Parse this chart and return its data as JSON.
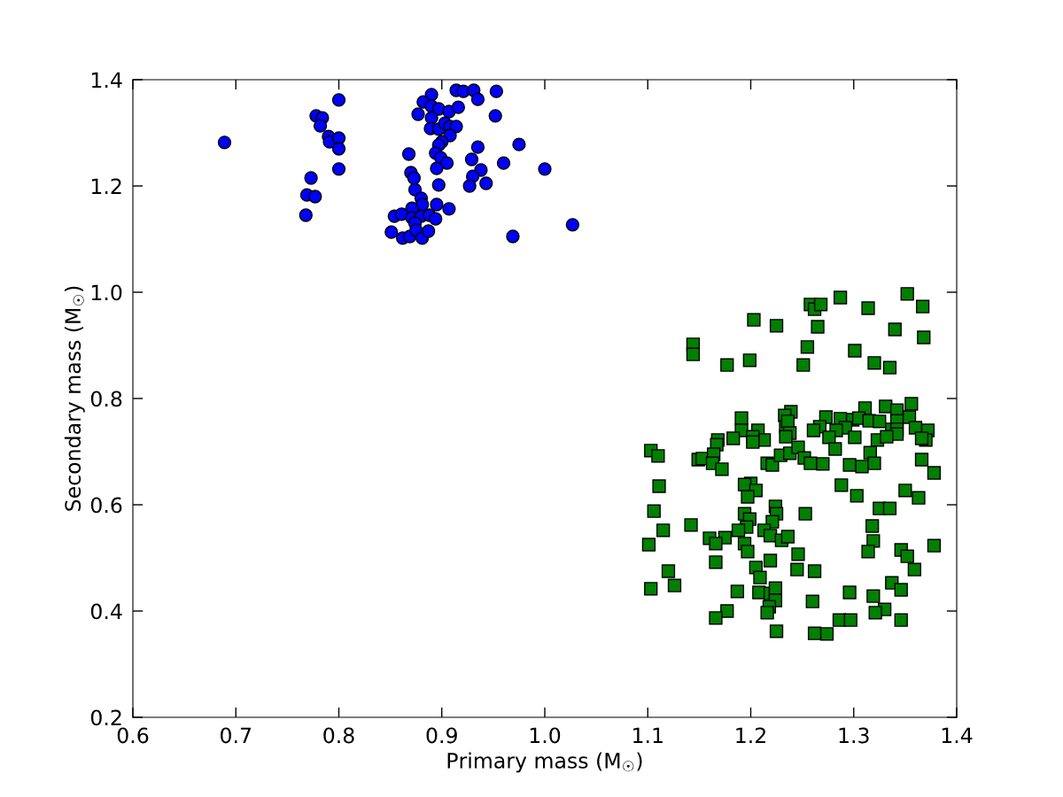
{
  "chart_data": {
    "type": "scatter",
    "xlabel": "Primary mass (M$_{☉}$)",
    "ylabel": "Secondary mass (M$_{☉}$)",
    "xlim": [
      0.6,
      1.4
    ],
    "ylim": [
      0.2,
      1.4
    ],
    "xticks": [
      0.6,
      0.7,
      0.8,
      0.9,
      {
        "value": 1.0,
        "label": "1.0"
      },
      1.1,
      1.2,
      1.3,
      1.4
    ],
    "yticks": [
      0.2,
      0.4,
      0.6,
      0.8,
      {
        "value": 1.0,
        "label": "1.0"
      },
      1.2,
      1.4
    ],
    "grid": false,
    "legend": false,
    "series": [
      {
        "color": "#0000ff",
        "marker": "circle",
        "x": [
          0.689,
          0.8,
          0.778,
          0.784,
          0.782,
          0.79,
          0.791,
          0.8,
          0.8,
          0.8,
          0.773,
          0.769,
          0.777,
          0.768,
          0.868,
          0.87,
          0.873,
          0.874,
          0.88,
          0.881,
          0.871,
          0.895,
          0.907,
          0.854,
          0.861,
          0.871,
          0.88,
          0.888,
          0.894,
          0.874,
          0.851,
          0.862,
          0.869,
          0.875,
          0.881,
          0.887,
          0.89,
          0.882,
          0.89,
          0.897,
          0.907,
          0.916,
          0.877,
          0.89,
          0.889,
          0.897,
          0.903,
          0.908,
          0.914,
          0.908,
          0.9,
          0.897,
          0.894,
          0.899,
          0.905,
          0.895,
          0.897,
          0.914,
          0.921,
          0.931,
          0.935,
          0.953,
          0.952,
          0.935,
          0.929,
          0.938,
          0.93,
          0.927,
          0.943,
          0.96,
          0.975,
          1.0,
          0.969,
          1.027
        ],
        "values": [
          1.282,
          1.362,
          1.332,
          1.328,
          1.313,
          1.293,
          1.283,
          1.29,
          1.27,
          1.232,
          1.215,
          1.183,
          1.18,
          1.145,
          1.26,
          1.225,
          1.215,
          1.193,
          1.177,
          1.165,
          1.158,
          1.165,
          1.157,
          1.143,
          1.147,
          1.14,
          1.143,
          1.145,
          1.138,
          1.13,
          1.113,
          1.102,
          1.105,
          1.117,
          1.102,
          1.115,
          1.372,
          1.358,
          1.35,
          1.345,
          1.34,
          1.348,
          1.335,
          1.328,
          1.308,
          1.307,
          1.318,
          1.312,
          1.312,
          1.295,
          1.283,
          1.277,
          1.262,
          1.253,
          1.243,
          1.233,
          1.202,
          1.38,
          1.378,
          1.38,
          1.363,
          1.378,
          1.332,
          1.273,
          1.25,
          1.23,
          1.218,
          1.2,
          1.205,
          1.243,
          1.278,
          1.232,
          1.105,
          1.127
        ]
      },
      {
        "color": "#008000",
        "marker": "square",
        "x": [
          1.352,
          1.367,
          1.287,
          1.258,
          1.262,
          1.268,
          1.314,
          1.203,
          1.225,
          1.265,
          1.34,
          1.368,
          1.144,
          1.144,
          1.255,
          1.301,
          1.177,
          1.199,
          1.251,
          1.32,
          1.335,
          1.356,
          1.311,
          1.331,
          1.342,
          1.239,
          1.233,
          1.191,
          1.354,
          1.273,
          1.287,
          1.299,
          1.305,
          1.315,
          1.325,
          1.342,
          1.234,
          1.236,
          1.267,
          1.191,
          1.207,
          1.292,
          1.36,
          1.372,
          1.261,
          1.283,
          1.337,
          1.342,
          1.238,
          1.234,
          1.276,
          1.301,
          1.213,
          1.202,
          1.202,
          1.183,
          1.168,
          1.167,
          1.323,
          1.342,
          1.37,
          1.366,
          1.332,
          1.282,
          1.316,
          1.103,
          1.11,
          1.149,
          1.153,
          1.164,
          1.163,
          1.172,
          1.216,
          1.221,
          1.229,
          1.238,
          1.246,
          1.252,
          1.258,
          1.27,
          1.296,
          1.308,
          1.32,
          1.366,
          1.378,
          1.111,
          1.2,
          1.194,
          1.205,
          1.197,
          1.288,
          1.303,
          1.35,
          1.363,
          1.106,
          1.115,
          1.142,
          1.101,
          1.224,
          1.225,
          1.194,
          1.199,
          1.196,
          1.188,
          1.221,
          1.213,
          1.219,
          1.23,
          1.236,
          1.253,
          1.325,
          1.335,
          1.318,
          1.319,
          1.314,
          1.16,
          1.175,
          1.166,
          1.194,
          1.197,
          1.246,
          1.346,
          1.352,
          1.378,
          1.166,
          1.219,
          1.205,
          1.209,
          1.245,
          1.262,
          1.359,
          1.12,
          1.126,
          1.103,
          1.337,
          1.346,
          1.187,
          1.208,
          1.219,
          1.224,
          1.224,
          1.218,
          1.216,
          1.26,
          1.296,
          1.319,
          1.33,
          1.321,
          1.346,
          1.177,
          1.166,
          1.225,
          1.286,
          1.297,
          1.262,
          1.274
        ],
        "values": [
          0.997,
          0.973,
          0.99,
          0.977,
          0.968,
          0.977,
          0.97,
          0.948,
          0.937,
          0.935,
          0.93,
          0.915,
          0.902,
          0.883,
          0.897,
          0.89,
          0.863,
          0.872,
          0.863,
          0.867,
          0.858,
          0.79,
          0.782,
          0.785,
          0.778,
          0.775,
          0.768,
          0.763,
          0.765,
          0.765,
          0.762,
          0.76,
          0.763,
          0.758,
          0.757,
          0.758,
          0.747,
          0.757,
          0.747,
          0.74,
          0.74,
          0.745,
          0.745,
          0.74,
          0.74,
          0.74,
          0.742,
          0.742,
          0.735,
          0.728,
          0.727,
          0.727,
          0.722,
          0.728,
          0.718,
          0.725,
          0.722,
          0.713,
          0.722,
          0.733,
          0.722,
          0.725,
          0.728,
          0.705,
          0.698,
          0.702,
          0.692,
          0.685,
          0.687,
          0.695,
          0.678,
          0.667,
          0.678,
          0.675,
          0.693,
          0.697,
          0.708,
          0.688,
          0.678,
          0.677,
          0.675,
          0.672,
          0.678,
          0.685,
          0.66,
          0.635,
          0.64,
          0.638,
          0.627,
          0.615,
          0.637,
          0.617,
          0.627,
          0.613,
          0.588,
          0.552,
          0.562,
          0.525,
          0.597,
          0.583,
          0.583,
          0.573,
          0.558,
          0.552,
          0.568,
          0.552,
          0.542,
          0.533,
          0.54,
          0.583,
          0.593,
          0.593,
          0.56,
          0.532,
          0.512,
          0.537,
          0.538,
          0.527,
          0.527,
          0.512,
          0.507,
          0.515,
          0.503,
          0.523,
          0.492,
          0.495,
          0.482,
          0.463,
          0.478,
          0.475,
          0.478,
          0.475,
          0.448,
          0.442,
          0.453,
          0.44,
          0.437,
          0.435,
          0.433,
          0.443,
          0.42,
          0.408,
          0.397,
          0.418,
          0.435,
          0.428,
          0.403,
          0.397,
          0.383,
          0.4,
          0.387,
          0.362,
          0.383,
          0.383,
          0.358,
          0.357
        ]
      }
    ]
  }
}
